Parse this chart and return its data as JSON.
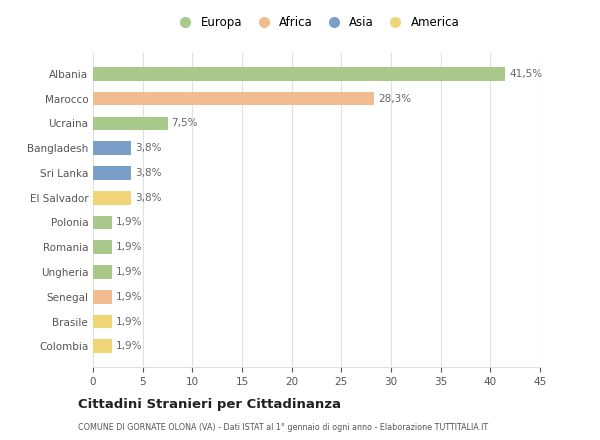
{
  "countries": [
    "Albania",
    "Marocco",
    "Ucraina",
    "Bangladesh",
    "Sri Lanka",
    "El Salvador",
    "Polonia",
    "Romania",
    "Ungheria",
    "Senegal",
    "Brasile",
    "Colombia"
  ],
  "values": [
    41.5,
    28.3,
    7.5,
    3.8,
    3.8,
    3.8,
    1.9,
    1.9,
    1.9,
    1.9,
    1.9,
    1.9
  ],
  "labels": [
    "41,5%",
    "28,3%",
    "7,5%",
    "3,8%",
    "3,8%",
    "3,8%",
    "1,9%",
    "1,9%",
    "1,9%",
    "1,9%",
    "1,9%",
    "1,9%"
  ],
  "colors": [
    "#a8c98a",
    "#f2bc90",
    "#a8c98a",
    "#7a9ec8",
    "#7a9ec8",
    "#f0d478",
    "#a8c98a",
    "#a8c98a",
    "#a8c98a",
    "#f2bc90",
    "#f0d478",
    "#f0d478"
  ],
  "legend_labels": [
    "Europa",
    "Africa",
    "Asia",
    "America"
  ],
  "legend_colors": [
    "#a8c98a",
    "#f2bc90",
    "#7a9ec8",
    "#f0d478"
  ],
  "xlim": [
    0,
    45
  ],
  "xticks": [
    0,
    5,
    10,
    15,
    20,
    25,
    30,
    35,
    40,
    45
  ],
  "title": "Cittadini Stranieri per Cittadinanza",
  "subtitle": "COMUNE DI GORNATE OLONA (VA) - Dati ISTAT al 1° gennaio di ogni anno - Elaborazione TUTTITALIA.IT",
  "bg_color": "#ffffff",
  "grid_color": "#e0e0e0",
  "text_color": "#555555",
  "label_color": "#666666"
}
